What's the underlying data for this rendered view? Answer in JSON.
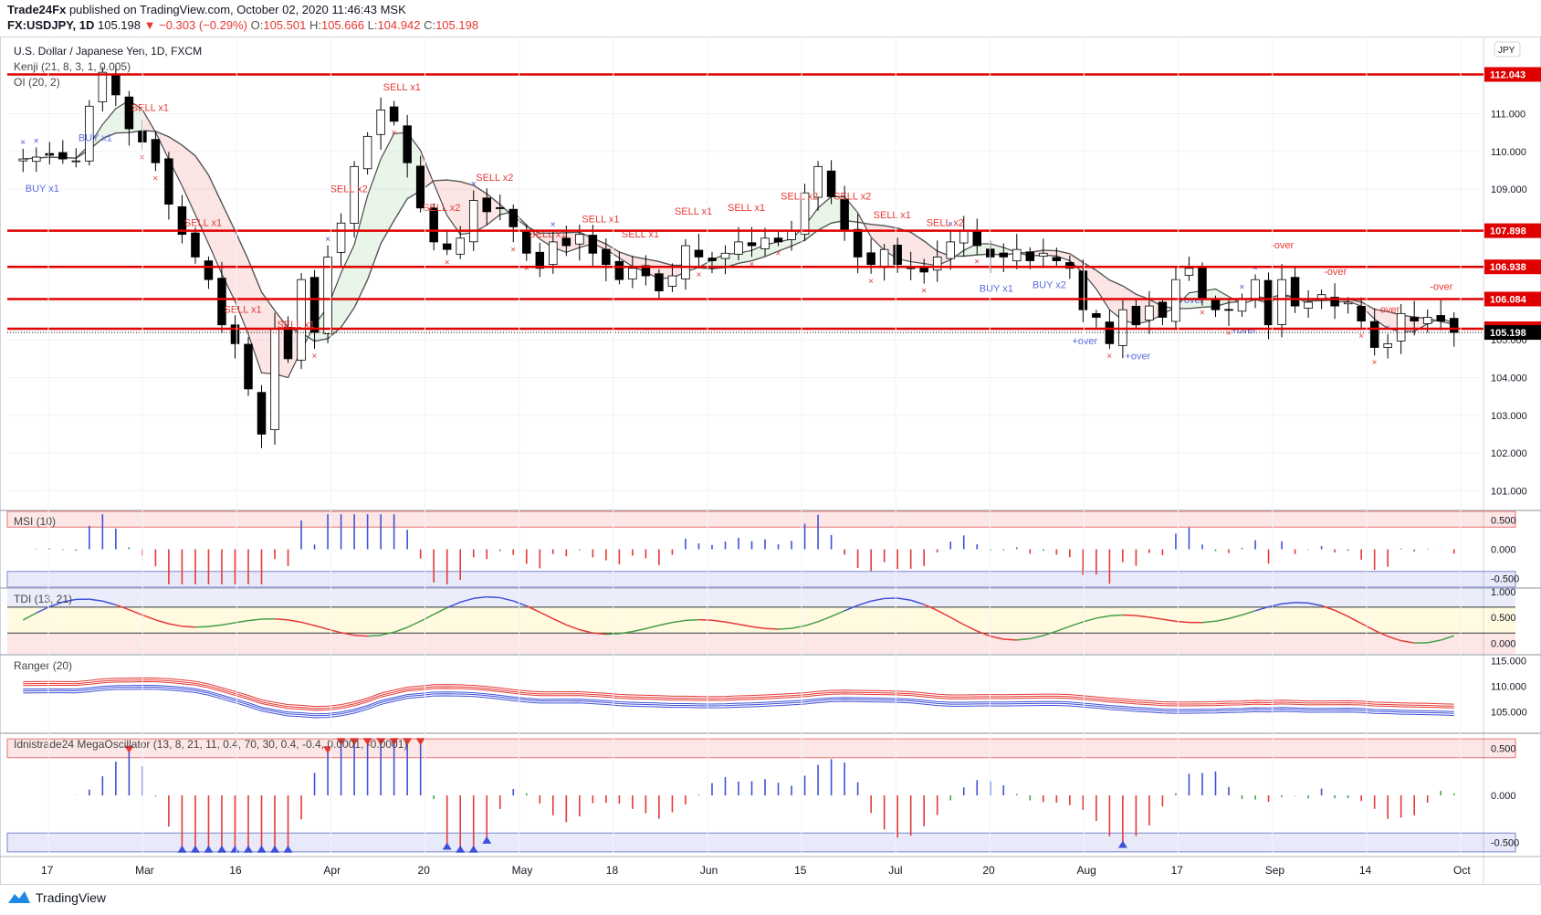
{
  "header": {
    "publisher": "Trade24Fx",
    "published_text": "published on TradingView.com, October 02, 2020 11:46:43 MSK",
    "symbol": "FX:USDJPY, 1D",
    "last": "105.198",
    "change": "−0.303 (−0.29%)",
    "o_label": "O:",
    "o_value": "105.501",
    "h_label": "H:",
    "h_value": "105.666",
    "l_label": "L:",
    "l_value": "104.942",
    "c_label": "C:",
    "c_value": "105.198"
  },
  "footer": {
    "brand": "TradingView"
  },
  "colors": {
    "resistance": "#e00000",
    "bull": "#ffffff",
    "bear": "#000000",
    "buy": "#3f51d8",
    "sell": "#e53935",
    "axis_bg": "#ffffff"
  },
  "chart_data": {
    "type": "candlestick",
    "title": "U.S. Dollar / Japanese Yen, 1D, FXCM",
    "indicator_labels": [
      "Kenji (21, 8, 3, 1, 0.005)",
      "OI (20, 2)"
    ],
    "currency_badge": "JPY",
    "y_ticks": [
      101,
      102,
      103,
      104,
      105,
      106,
      107,
      108,
      109,
      110,
      111,
      112
    ],
    "ylim": [
      100.5,
      113.0
    ],
    "horizontal_levels": [
      "112.043",
      "107.898",
      "106.938",
      "106.084",
      "105.297"
    ],
    "last_price": "105.198",
    "x_ticks": [
      "17",
      "Mar",
      "16",
      "Apr",
      "20",
      "May",
      "18",
      "Jun",
      "15",
      "Jul",
      "20",
      "Aug",
      "17",
      "Sep",
      "14",
      "Oct"
    ],
    "closes": [
      109.8,
      109.85,
      109.9,
      109.8,
      109.75,
      111.2,
      112.1,
      111.5,
      110.6,
      110.25,
      109.7,
      108.6,
      107.8,
      107.2,
      106.6,
      105.4,
      104.9,
      103.7,
      102.5,
      105.3,
      104.5,
      106.6,
      105.2,
      107.2,
      108.1,
      109.6,
      110.4,
      111.1,
      110.8,
      109.7,
      108.5,
      107.6,
      107.4,
      107.7,
      108.7,
      108.4,
      108.5,
      108.0,
      107.3,
      106.9,
      107.6,
      107.5,
      107.8,
      107.3,
      107.0,
      106.6,
      106.9,
      106.7,
      106.3,
      106.7,
      107.5,
      107.2,
      107.1,
      107.3,
      107.6,
      107.5,
      107.7,
      107.6,
      107.9,
      108.9,
      109.6,
      108.8,
      107.9,
      107.2,
      107.0,
      107.4,
      107.0,
      106.9,
      106.8,
      107.2,
      107.6,
      107.9,
      107.5,
      107.2,
      107.2,
      107.4,
      107.1,
      107.3,
      107.1,
      106.9,
      105.8,
      105.6,
      104.9,
      105.8,
      105.4,
      105.9,
      105.6,
      106.6,
      106.9,
      106.1,
      105.8,
      105.8,
      106.1,
      106.6,
      105.4,
      106.6,
      105.9,
      106.0,
      106.2,
      105.9,
      106.0,
      105.5,
      104.8,
      104.9,
      105.7,
      105.5,
      105.6,
      105.5,
      105.198
    ],
    "series": [
      {
        "name": "MSI (10)",
        "ylim": [
          -0.65,
          0.65
        ],
        "ticks": [
          "0.500",
          "0.000",
          "-0.500"
        ]
      },
      {
        "name": "TDI (13, 21)",
        "ylim": [
          -0.2,
          1.05
        ],
        "ticks": [
          "1.000",
          "0.500",
          "0.000"
        ]
      },
      {
        "name": "Ranger (20)",
        "ylim": [
          101,
          116
        ],
        "ticks": [
          "115.000",
          "110.000",
          "105.000"
        ]
      },
      {
        "name": "Idnistrade24 MegaOscillator (13, 8, 21, 11, 0.4, 70, 30, 0.4, -0.4, 0.0001, -0.0001)",
        "ylim": [
          -0.65,
          0.65
        ],
        "ticks": [
          "0.500",
          "0.000",
          "-0.500"
        ]
      }
    ],
    "signal_labels": [
      "BUY x1",
      "BUY x1",
      "SELL x1",
      "SELL x1",
      "SELL x1",
      "SELL x1",
      "SELL x2",
      "SELL x1",
      "SELL x2",
      "SELL x2",
      "SELL x1",
      "SELL x1",
      "SELL x1",
      "SELL x1",
      "SELL x1",
      "SELL x2",
      "SELL x2",
      "SELL x1",
      "SELL x2",
      "BUY x1",
      "BUY x2",
      "+over",
      "+over",
      "+over",
      "+over",
      "-over",
      "-over",
      "-over",
      "-over"
    ]
  }
}
